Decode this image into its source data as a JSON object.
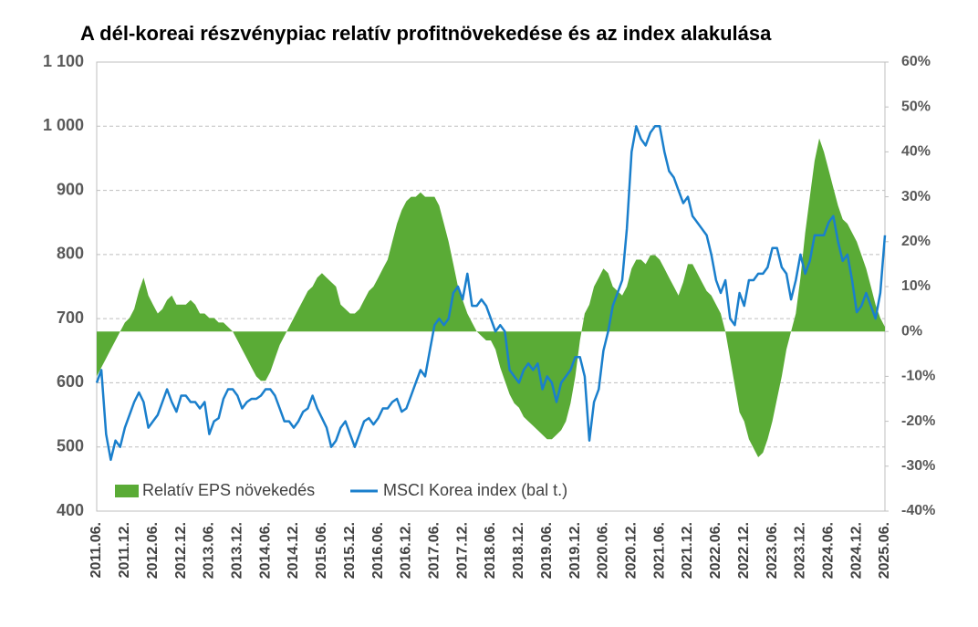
{
  "chart_data": {
    "type": "line",
    "title": "A dél-koreai részvénypiac relatív profitnövekedése és az index alakulása",
    "categories": [
      "2011.06.",
      null,
      null,
      null,
      null,
      null,
      "2011.12.",
      null,
      null,
      null,
      null,
      null,
      "2012.06.",
      null,
      null,
      null,
      null,
      null,
      "2012.12.",
      null,
      null,
      null,
      null,
      null,
      "2013.06.",
      null,
      null,
      null,
      null,
      null,
      "2013.12.",
      null,
      null,
      null,
      null,
      null,
      "2014.06.",
      null,
      null,
      null,
      null,
      null,
      "2014.12.",
      null,
      null,
      null,
      null,
      null,
      "2015.06.",
      null,
      null,
      null,
      null,
      null,
      "2015.12.",
      null,
      null,
      null,
      null,
      null,
      "2016.06.",
      null,
      null,
      null,
      null,
      null,
      "2016.12.",
      null,
      null,
      null,
      null,
      null,
      "2017.06.",
      null,
      null,
      null,
      null,
      null,
      "2017.12.",
      null,
      null,
      null,
      null,
      null,
      "2018.06.",
      null,
      null,
      null,
      null,
      null,
      "2018.12.",
      null,
      null,
      null,
      null,
      null,
      "2019.06.",
      null,
      null,
      null,
      null,
      null,
      "2019.12.",
      null,
      null,
      null,
      null,
      null,
      "2020.06.",
      null,
      null,
      null,
      null,
      null,
      "2020.12.",
      null,
      null,
      null,
      null,
      null,
      "2021.06.",
      null,
      null,
      null,
      null,
      null,
      "2021.12.",
      null,
      null,
      null,
      null,
      null,
      "2022.06.",
      null,
      null,
      null,
      null,
      null,
      "2022.12.",
      null,
      null,
      null,
      null,
      null,
      "2023.06.",
      null,
      null,
      null,
      null,
      null,
      "2023.12.",
      null,
      null,
      null,
      null,
      null,
      "2024.06.",
      null,
      null,
      null,
      null,
      null,
      "2024.12.",
      null,
      null,
      null,
      null,
      null,
      "2025.06."
    ],
    "series": [
      {
        "name": "Relatív EPS növekedés",
        "color": "#5aab36",
        "axis": "y2",
        "kind": "area",
        "values": [
          -10,
          -8,
          -6,
          -4,
          -2,
          0,
          2,
          3,
          5,
          9,
          12,
          8,
          6,
          4,
          5,
          7,
          8,
          6,
          6,
          6,
          7,
          6,
          4,
          4,
          3,
          3,
          2,
          2,
          1,
          0,
          -2,
          -4,
          -6,
          -8,
          -10,
          -11,
          -11,
          -9,
          -6,
          -3,
          -1,
          1,
          3,
          5,
          7,
          9,
          10,
          12,
          13,
          12,
          11,
          10,
          6,
          5,
          4,
          4,
          5,
          7,
          9,
          10,
          12,
          14,
          16,
          20,
          24,
          27,
          29,
          30,
          30,
          31,
          30,
          30,
          30,
          28,
          24,
          20,
          15,
          10,
          7,
          4,
          2,
          0,
          -1,
          -2,
          -2,
          -4,
          -8,
          -11,
          -14,
          -16,
          -17,
          -19,
          -20,
          -21,
          -22,
          -23,
          -24,
          -24,
          -23,
          -22,
          -20,
          -16,
          -10,
          -2,
          4,
          6,
          10,
          12,
          14,
          13,
          10,
          9,
          8,
          10,
          14,
          16,
          16,
          15,
          17,
          17,
          16,
          14,
          12,
          10,
          8,
          11,
          15,
          15,
          13,
          11,
          9,
          8,
          6,
          4,
          0,
          -6,
          -12,
          -18,
          -20,
          -24,
          -26,
          -28,
          -27,
          -24,
          -20,
          -15,
          -10,
          -4,
          0,
          4,
          12,
          22,
          30,
          38,
          43,
          40,
          36,
          32,
          28,
          25,
          24,
          22,
          20,
          17,
          14,
          10,
          6,
          3,
          1
        ]
      },
      {
        "name": "MSCI Korea index (bal t.)",
        "color": "#1a7fcc",
        "axis": "y",
        "values": [
          600,
          620,
          520,
          480,
          510,
          500,
          530,
          550,
          570,
          585,
          570,
          530,
          540,
          550,
          570,
          590,
          570,
          555,
          580,
          580,
          570,
          570,
          560,
          570,
          520,
          540,
          545,
          575,
          590,
          590,
          580,
          560,
          570,
          575,
          575,
          580,
          590,
          590,
          580,
          560,
          540,
          540,
          530,
          540,
          555,
          560,
          580,
          560,
          545,
          530,
          500,
          510,
          530,
          540,
          520,
          500,
          520,
          540,
          545,
          535,
          545,
          560,
          560,
          570,
          575,
          555,
          560,
          580,
          600,
          620,
          610,
          650,
          690,
          700,
          690,
          700,
          740,
          750,
          730,
          770,
          720,
          720,
          730,
          720,
          700,
          680,
          690,
          680,
          620,
          610,
          600,
          620,
          630,
          620,
          630,
          590,
          610,
          600,
          570,
          600,
          610,
          620,
          640,
          640,
          610,
          510,
          570,
          590,
          650,
          680,
          720,
          740,
          760,
          840,
          960,
          1000,
          980,
          970,
          990,
          1000,
          1000,
          960,
          930,
          920,
          900,
          880,
          890,
          860,
          850,
          840,
          830,
          800,
          760,
          740,
          760,
          700,
          690,
          740,
          720,
          760,
          760,
          770,
          770,
          780,
          810,
          810,
          780,
          770,
          730,
          760,
          800,
          770,
          790,
          830,
          830,
          830,
          850,
          860,
          820,
          790,
          800,
          760,
          710,
          720,
          740,
          720,
          700,
          740,
          830
        ]
      }
    ],
    "ylim": [
      400,
      1100
    ],
    "yticks": [
      400,
      500,
      600,
      700,
      800,
      900,
      {
        "value": 1000,
        "label": "1 000"
      },
      {
        "value": 1100,
        "label": "1 100"
      }
    ],
    "y2lim": [
      -40,
      60
    ],
    "y2ticks": [
      {
        "value": -40,
        "label": "-40%"
      },
      {
        "value": -30,
        "label": "-30%"
      },
      {
        "value": -20,
        "label": "-20%"
      },
      {
        "value": -10,
        "label": "-10%"
      },
      {
        "value": 0,
        "label": "0%"
      },
      {
        "value": 10,
        "label": "10%"
      },
      {
        "value": 20,
        "label": "20%"
      },
      {
        "value": 30,
        "label": "30%"
      },
      {
        "value": 40,
        "label": "40%"
      },
      {
        "value": 50,
        "label": "50%"
      },
      {
        "value": 60,
        "label": "60%"
      }
    ],
    "grid": true,
    "legend": "lower left"
  }
}
